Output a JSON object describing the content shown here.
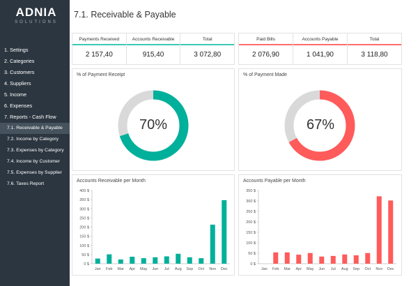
{
  "logo": {
    "brand": "ADNIA",
    "sub": "SOLUTIONS"
  },
  "sidebar": {
    "items": [
      {
        "label": "1. Settings"
      },
      {
        "label": "2. Categories"
      },
      {
        "label": "3. Customers"
      },
      {
        "label": "4. Suppliers"
      },
      {
        "label": "5. Income"
      },
      {
        "label": "6. Expenses"
      },
      {
        "label": "7. Reports - Cash Flow"
      },
      {
        "label": "7.1. Receivable & Payable",
        "active": true
      },
      {
        "label": "7.2. Income by Category"
      },
      {
        "label": "7.3. Expenses by Category"
      },
      {
        "label": "7.4. Income by Customer"
      },
      {
        "label": "7.5. Expenses by Supplier"
      },
      {
        "label": "7.6. Taxes Report"
      }
    ]
  },
  "page_title": "7.1. Receivable & Payable",
  "colors": {
    "receivable": "#00b09b",
    "payable": "#ff5b5b",
    "remainder": "#d9d9d9",
    "sidebar": "#2c3640"
  },
  "receivable_kpis": [
    {
      "label": "Payments Received",
      "value": "2 157,40"
    },
    {
      "label": "Accounts Receivable",
      "value": "915,40"
    },
    {
      "label": "Total",
      "value": "3 072,80"
    }
  ],
  "payable_kpis": [
    {
      "label": "Paid Bills",
      "value": "2 076,90"
    },
    {
      "label": "Accounts Payable",
      "value": "1 041,90"
    },
    {
      "label": "Total",
      "value": "3 118,80"
    }
  ],
  "receipt_donut": {
    "title": "% of Payment Receipt",
    "label": "70%",
    "percent": 70
  },
  "made_donut": {
    "title": "% of Payment Made",
    "label": "67%",
    "percent": 67
  },
  "chart_data": [
    {
      "type": "bar",
      "title": "Accounts Receivable per Month",
      "categories": [
        "Jan",
        "Feb",
        "Mar",
        "Apr",
        "May",
        "Jun",
        "Jul",
        "Aug",
        "Sep",
        "Oct",
        "Nov",
        "Dec"
      ],
      "values": [
        28,
        51,
        23,
        38,
        30,
        35,
        40,
        54,
        35,
        30,
        213,
        347
      ],
      "ylim": [
        0,
        400
      ],
      "ytick_step": 50,
      "yticks": [
        "0 $",
        "50 $",
        "100 $",
        "150 $",
        "200 $",
        "250 $",
        "300 $",
        "350 $",
        "400 $"
      ],
      "grid": false
    },
    {
      "type": "bar",
      "title": "Accounts Payable per Month",
      "categories": [
        "Jan",
        "Feb",
        "Mar",
        "Apr",
        "May",
        "Jun",
        "Jul",
        "Aug",
        "Sep",
        "Oct",
        "Nov",
        "Dec"
      ],
      "values": [
        0,
        54,
        54,
        43,
        51,
        34,
        37,
        44,
        40,
        51,
        322,
        302
      ],
      "ylim": [
        0,
        350
      ],
      "ytick_step": 50,
      "yticks": [
        "0 $",
        "50 $",
        "100 $",
        "150 $",
        "200 $",
        "250 $",
        "300 $",
        "350 $"
      ],
      "grid": false
    }
  ]
}
